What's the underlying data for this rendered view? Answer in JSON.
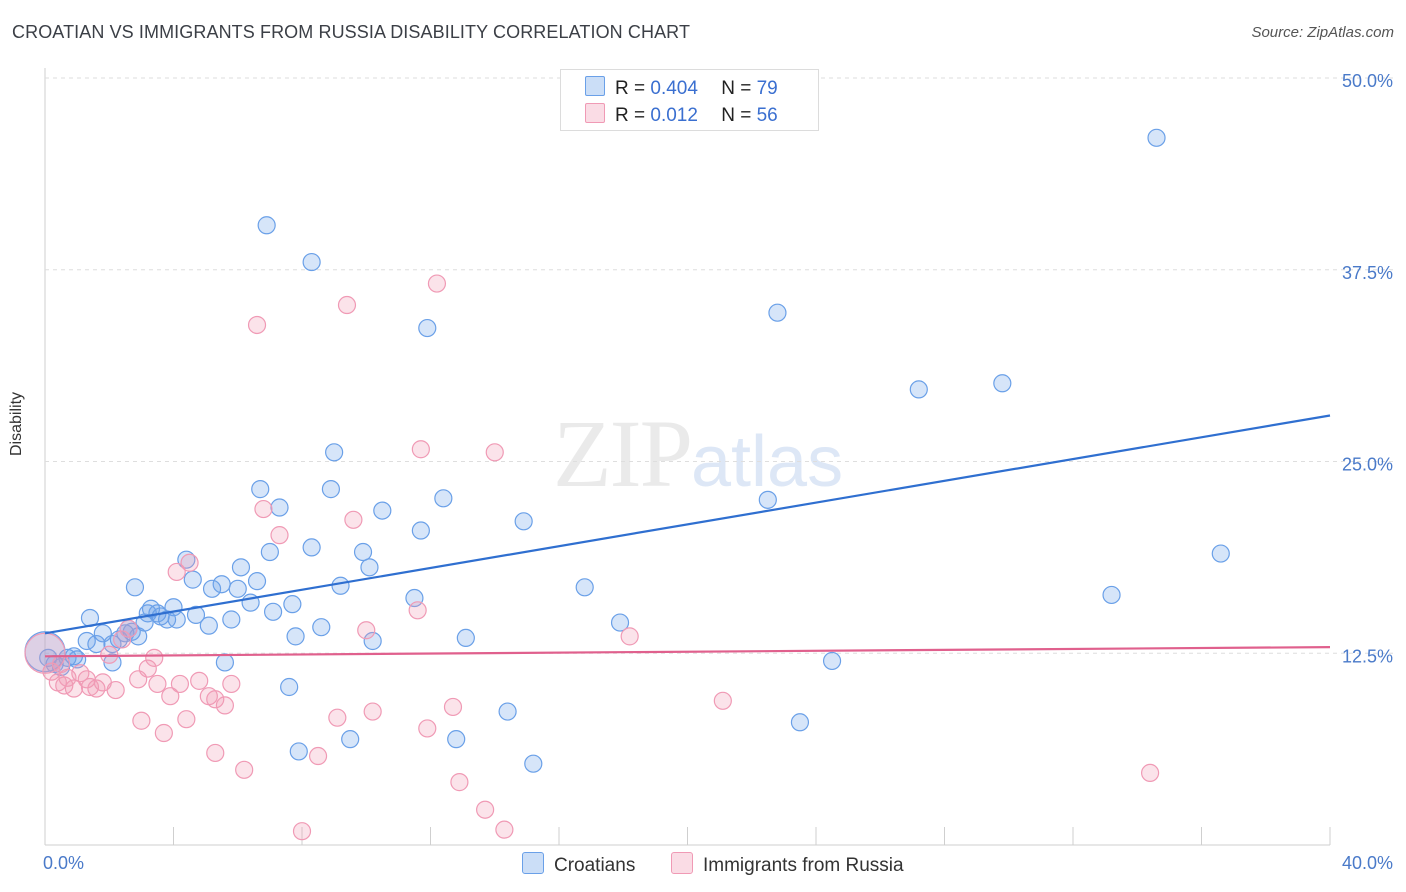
{
  "title": "CROATIAN VS IMMIGRANTS FROM RUSSIA DISABILITY CORRELATION CHART",
  "source": "Source: ZipAtlas.com",
  "watermark": {
    "zip": "ZIP",
    "atlas": "atlas"
  },
  "legend_top": [
    {
      "r_label": "R = ",
      "r_value": "0.404",
      "n_label": "N = ",
      "n_value": "79",
      "color": "#6aa0e8"
    },
    {
      "r_label": "R = ",
      "r_value": " 0.012",
      "n_label": "N = ",
      "n_value": "56",
      "color": "#f09ab5"
    }
  ],
  "legend_bottom": [
    {
      "label": "Croatians",
      "color": "#6aa0e8"
    },
    {
      "label": "Immigrants from Russia",
      "color": "#f09ab5"
    }
  ],
  "chart_data": {
    "type": "scatter",
    "title": "CROATIAN VS IMMIGRANTS FROM RUSSIA DISABILITY CORRELATION CHART",
    "xlabel": "",
    "ylabel": "Disability",
    "xlim": [
      0,
      40
    ],
    "ylim": [
      0,
      50
    ],
    "x_ticks": [
      "0.0%",
      "40.0%"
    ],
    "y_ticks": [
      {
        "value": 12.5,
        "label": "12.5%"
      },
      {
        "value": 25.0,
        "label": "25.0%"
      },
      {
        "value": 37.5,
        "label": "37.5%"
      },
      {
        "value": 50.0,
        "label": "50.0%"
      }
    ],
    "grid": true,
    "legend_position": "top-center",
    "series": [
      {
        "name": "Croatians",
        "color": "#6aa0e8",
        "line_color": "#2f6fd0",
        "trend": {
          "x": [
            0,
            40
          ],
          "y": [
            13.8,
            28.0
          ]
        },
        "points": [
          [
            0.1,
            12.2
          ],
          [
            0.3,
            11.8
          ],
          [
            0.5,
            11.6
          ],
          [
            0.7,
            12.2
          ],
          [
            0.9,
            12.3
          ],
          [
            1.0,
            12.1
          ],
          [
            1.3,
            13.3
          ],
          [
            1.4,
            14.8
          ],
          [
            1.6,
            13.1
          ],
          [
            1.8,
            13.8
          ],
          [
            2.1,
            13.1
          ],
          [
            2.1,
            11.9
          ],
          [
            2.3,
            13.4
          ],
          [
            2.5,
            13.8
          ],
          [
            2.6,
            14.1
          ],
          [
            2.7,
            13.9
          ],
          [
            2.8,
            16.8
          ],
          [
            2.9,
            13.6
          ],
          [
            3.1,
            14.5
          ],
          [
            3.2,
            15.1
          ],
          [
            3.3,
            15.4
          ],
          [
            3.5,
            15.1
          ],
          [
            3.6,
            14.9
          ],
          [
            3.8,
            14.7
          ],
          [
            4.0,
            15.5
          ],
          [
            4.1,
            14.7
          ],
          [
            4.4,
            18.6
          ],
          [
            4.6,
            17.3
          ],
          [
            4.7,
            15.0
          ],
          [
            5.1,
            14.3
          ],
          [
            5.2,
            16.7
          ],
          [
            5.5,
            17.0
          ],
          [
            5.6,
            11.9
          ],
          [
            5.8,
            14.7
          ],
          [
            6.0,
            16.7
          ],
          [
            6.1,
            18.1
          ],
          [
            6.4,
            15.8
          ],
          [
            6.6,
            17.2
          ],
          [
            6.7,
            23.2
          ],
          [
            6.9,
            40.4
          ],
          [
            7.0,
            19.1
          ],
          [
            7.1,
            15.2
          ],
          [
            7.3,
            22.0
          ],
          [
            7.6,
            10.3
          ],
          [
            7.7,
            15.7
          ],
          [
            7.8,
            13.6
          ],
          [
            7.9,
            6.1
          ],
          [
            8.3,
            38.0
          ],
          [
            8.3,
            19.4
          ],
          [
            8.6,
            14.2
          ],
          [
            8.9,
            23.2
          ],
          [
            9.0,
            25.6
          ],
          [
            9.2,
            16.9
          ],
          [
            9.5,
            6.9
          ],
          [
            9.9,
            19.1
          ],
          [
            10.1,
            18.1
          ],
          [
            10.2,
            13.3
          ],
          [
            10.5,
            21.8
          ],
          [
            11.5,
            16.1
          ],
          [
            11.7,
            20.5
          ],
          [
            11.9,
            33.7
          ],
          [
            12.4,
            22.6
          ],
          [
            12.8,
            6.9
          ],
          [
            13.1,
            13.5
          ],
          [
            14.4,
            8.7
          ],
          [
            14.9,
            21.1
          ],
          [
            15.2,
            5.3
          ],
          [
            16.8,
            16.8
          ],
          [
            17.9,
            14.5
          ],
          [
            22.5,
            22.5
          ],
          [
            22.8,
            34.7
          ],
          [
            23.5,
            8.0
          ],
          [
            24.5,
            12.0
          ],
          [
            27.2,
            29.7
          ],
          [
            29.8,
            30.1
          ],
          [
            33.2,
            16.3
          ],
          [
            34.6,
            46.1
          ],
          [
            36.6,
            19.0
          ],
          [
            0.0,
            12.6
          ]
        ]
      },
      {
        "name": "Immigrants from Russia",
        "color": "#f09ab5",
        "line_color": "#e0608d",
        "trend": {
          "x": [
            0,
            40
          ],
          "y": [
            12.3,
            12.9
          ]
        },
        "points": [
          [
            0.2,
            11.3
          ],
          [
            0.4,
            10.6
          ],
          [
            0.5,
            11.8
          ],
          [
            0.6,
            10.4
          ],
          [
            0.7,
            10.9
          ],
          [
            0.9,
            10.2
          ],
          [
            1.1,
            11.2
          ],
          [
            1.3,
            10.8
          ],
          [
            1.4,
            10.3
          ],
          [
            1.6,
            10.2
          ],
          [
            1.8,
            10.6
          ],
          [
            2.0,
            12.4
          ],
          [
            2.2,
            10.1
          ],
          [
            2.4,
            13.4
          ],
          [
            2.6,
            14.1
          ],
          [
            2.9,
            10.8
          ],
          [
            3.0,
            8.1
          ],
          [
            3.2,
            11.5
          ],
          [
            3.4,
            12.2
          ],
          [
            3.5,
            10.5
          ],
          [
            3.7,
            7.3
          ],
          [
            3.9,
            9.7
          ],
          [
            4.1,
            17.8
          ],
          [
            4.2,
            10.5
          ],
          [
            4.4,
            8.2
          ],
          [
            4.5,
            18.4
          ],
          [
            4.8,
            10.7
          ],
          [
            5.1,
            9.7
          ],
          [
            5.3,
            9.5
          ],
          [
            5.3,
            6.0
          ],
          [
            5.6,
            9.1
          ],
          [
            5.8,
            10.5
          ],
          [
            6.2,
            4.9
          ],
          [
            6.6,
            33.9
          ],
          [
            6.8,
            21.9
          ],
          [
            7.3,
            20.2
          ],
          [
            8.0,
            0.9
          ],
          [
            8.5,
            5.8
          ],
          [
            9.1,
            8.3
          ],
          [
            9.4,
            35.2
          ],
          [
            9.6,
            21.2
          ],
          [
            10.0,
            14.0
          ],
          [
            10.2,
            8.7
          ],
          [
            11.6,
            15.3
          ],
          [
            11.7,
            25.8
          ],
          [
            11.9,
            7.6
          ],
          [
            12.2,
            36.6
          ],
          [
            12.7,
            9.0
          ],
          [
            12.9,
            4.1
          ],
          [
            13.7,
            2.3
          ],
          [
            14.0,
            25.6
          ],
          [
            14.3,
            1.0
          ],
          [
            18.2,
            13.6
          ],
          [
            21.1,
            9.4
          ],
          [
            34.4,
            4.7
          ],
          [
            0.0,
            12.5
          ]
        ]
      }
    ]
  }
}
